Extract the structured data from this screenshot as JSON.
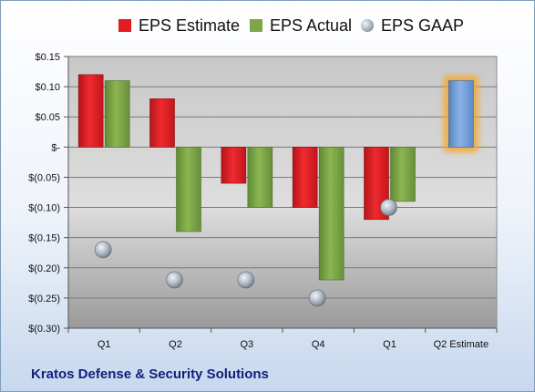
{
  "chart_data": {
    "type": "bar",
    "categories": [
      "Q1",
      "Q2",
      "Q3",
      "Q4",
      "Q1",
      "Q2 Estimate"
    ],
    "series": [
      {
        "name": "EPS Estimate",
        "color": "#e31b23",
        "values": [
          0.12,
          0.08,
          -0.06,
          -0.1,
          -0.12,
          null
        ]
      },
      {
        "name": "EPS Actual",
        "color": "#7fa646",
        "values": [
          0.11,
          -0.14,
          -0.1,
          -0.22,
          -0.09,
          null
        ]
      },
      {
        "name": "EPS GAAP",
        "color": "#9aa7b5",
        "values": [
          -0.17,
          -0.22,
          -0.22,
          -0.25,
          -0.1,
          null
        ]
      }
    ],
    "estimate_bar": {
      "category": "Q2 Estimate",
      "value": 0.11,
      "color": "#6f9fd8",
      "glow": "#f5a623"
    },
    "y_ticks": [
      "$0.15",
      "$0.10",
      "$0.05",
      "$-",
      "$(0.05)",
      "$(0.10)",
      "$(0.15)",
      "$(0.20)",
      "$(0.25)",
      "$(0.30)"
    ],
    "ylim": [
      -0.3,
      0.15
    ],
    "y_step": 0.05,
    "grid": true,
    "legend_position": "top"
  },
  "footer": {
    "company": "Kratos Defense & Security Solutions"
  }
}
